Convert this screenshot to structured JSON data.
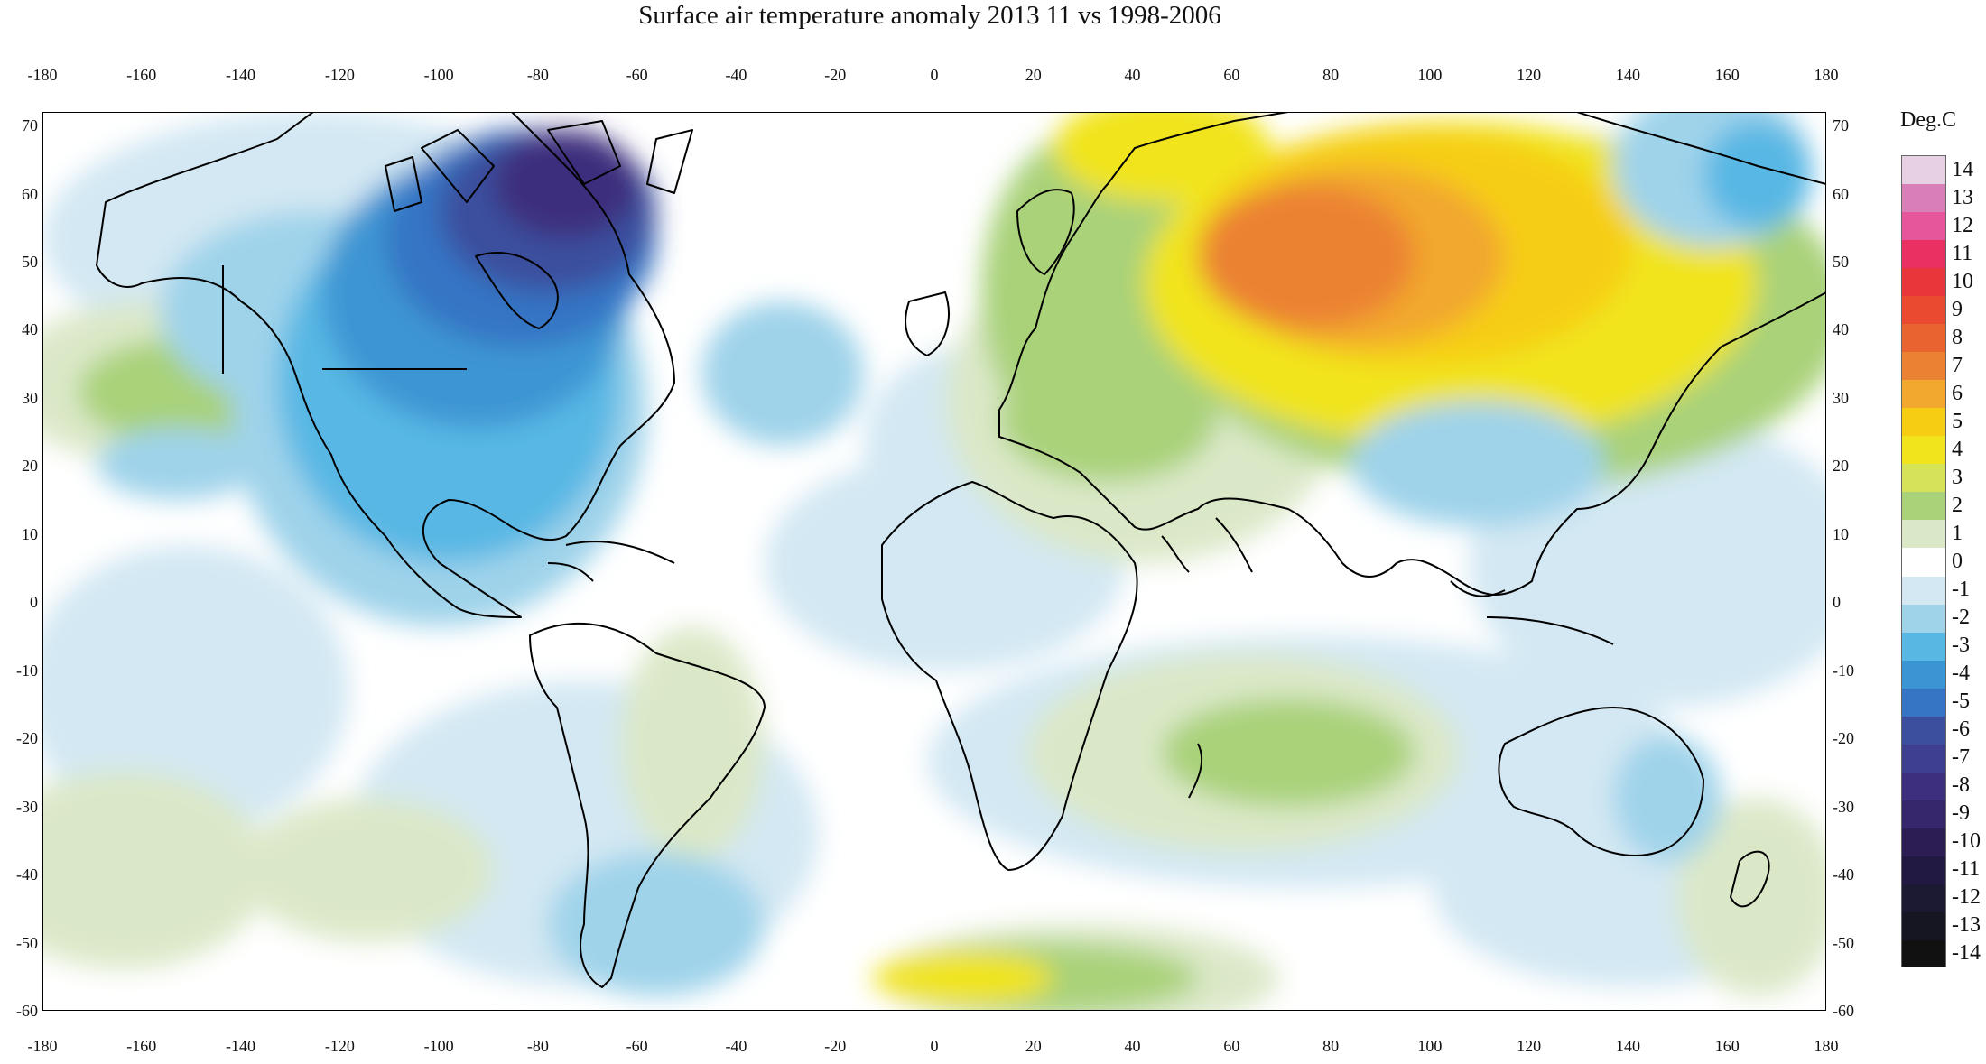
{
  "title": "Surface air temperature anomaly 2013 11 vs 1998-2006",
  "map": {
    "lon_ticks": [
      "-180",
      "-160",
      "-140",
      "-120",
      "-100",
      "-80",
      "-60",
      "-40",
      "-20",
      "0",
      "20",
      "40",
      "60",
      "80",
      "100",
      "120",
      "140",
      "160",
      "180"
    ],
    "lat_ticks": [
      "70",
      "60",
      "50",
      "40",
      "30",
      "20",
      "10",
      "0",
      "-10",
      "-20",
      "-30",
      "-40",
      "-50",
      "-60"
    ],
    "lon_range": [
      -180,
      180
    ],
    "lat_range": [
      -60,
      72
    ]
  },
  "legend": {
    "title": "Deg.C",
    "levels": [
      "14",
      "13",
      "12",
      "11",
      "10",
      "9",
      "8",
      "7",
      "6",
      "5",
      "4",
      "3",
      "2",
      "1",
      "0",
      "-1",
      "-2",
      "-3",
      "-4",
      "-5",
      "-6",
      "-7",
      "-8",
      "-9",
      "-10",
      "-11",
      "-12",
      "-13",
      "-14"
    ],
    "colors": {
      "14": "#e7cfe4",
      "13": "#d97fb8",
      "12": "#e5569a",
      "11": "#ea2f63",
      "10": "#e8363a",
      "9": "#ea4a2f",
      "8": "#e86330",
      "7": "#eb8233",
      "6": "#f2a72e",
      "5": "#f6cd12",
      "4": "#f1e41c",
      "3": "#d6e35a",
      "2": "#a9d279",
      "1": "#dbe8c8",
      "0": "#ffffff",
      "-1": "#d3e8f3",
      "-2": "#9fd3ea",
      "-3": "#59b7e4",
      "-4": "#3c95d3",
      "-5": "#3575c4",
      "-6": "#3b4f9e",
      "-7": "#3e3f8f",
      "-8": "#3d2f7d",
      "-9": "#36266c",
      "-10": "#2c1d55",
      "-11": "#211942",
      "-12": "#1c1a33",
      "-13": "#161623",
      "-14": "#111111"
    }
  }
}
